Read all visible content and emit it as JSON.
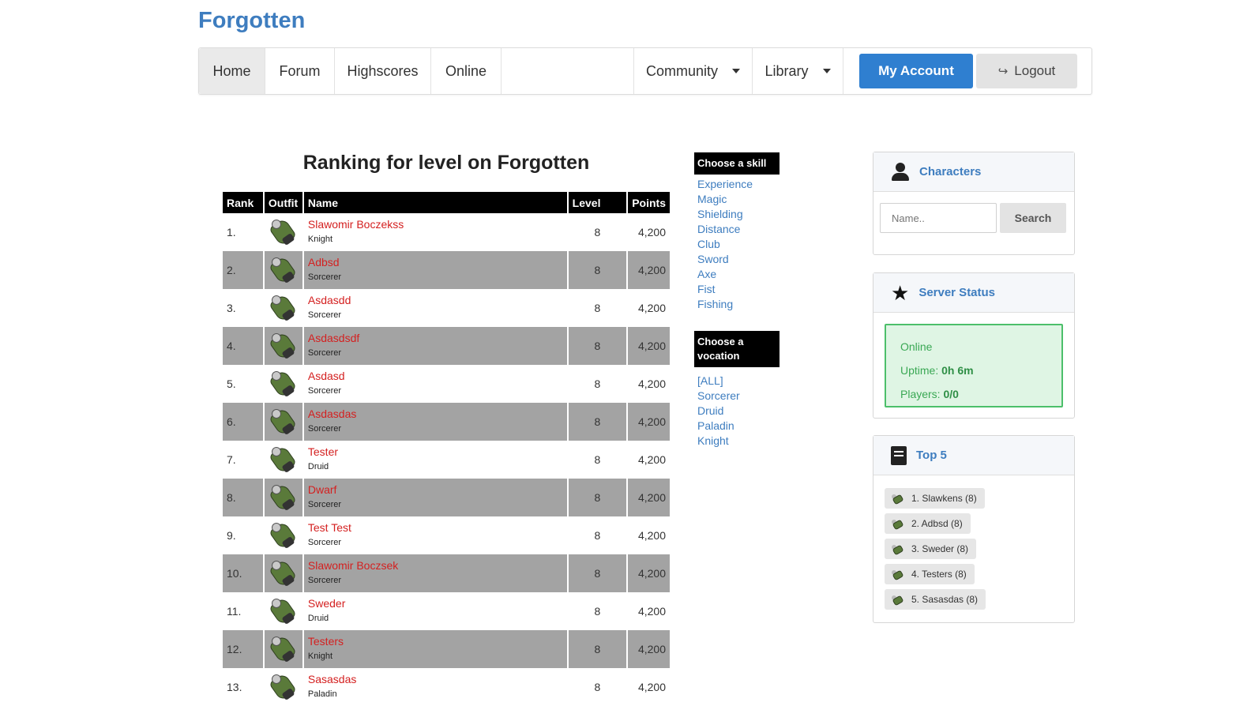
{
  "brand": "Forgotten",
  "nav": {
    "home": "Home",
    "forum": "Forum",
    "highscores": "Highscores",
    "online": "Online",
    "community": "Community",
    "library": "Library",
    "my_account": "My Account",
    "logout": "Logout"
  },
  "ranking": {
    "title": "Ranking for level on Forgotten",
    "headers": {
      "rank": "Rank",
      "outfit": "Outfit",
      "name": "Name",
      "level": "Level",
      "points": "Points"
    },
    "rows": [
      {
        "rank": "1.",
        "name": "Slawomir Boczekss",
        "vocation": "Knight",
        "level": "8",
        "points": "4,200"
      },
      {
        "rank": "2.",
        "name": "Adbsd",
        "vocation": "Sorcerer",
        "level": "8",
        "points": "4,200"
      },
      {
        "rank": "3.",
        "name": "Asdasdd",
        "vocation": "Sorcerer",
        "level": "8",
        "points": "4,200"
      },
      {
        "rank": "4.",
        "name": "Asdasdsdf",
        "vocation": "Sorcerer",
        "level": "8",
        "points": "4,200"
      },
      {
        "rank": "5.",
        "name": "Asdasd",
        "vocation": "Sorcerer",
        "level": "8",
        "points": "4,200"
      },
      {
        "rank": "6.",
        "name": "Asdasdas",
        "vocation": "Sorcerer",
        "level": "8",
        "points": "4,200"
      },
      {
        "rank": "7.",
        "name": "Tester",
        "vocation": "Druid",
        "level": "8",
        "points": "4,200"
      },
      {
        "rank": "8.",
        "name": "Dwarf",
        "vocation": "Sorcerer",
        "level": "8",
        "points": "4,200"
      },
      {
        "rank": "9.",
        "name": "Test Test",
        "vocation": "Sorcerer",
        "level": "8",
        "points": "4,200"
      },
      {
        "rank": "10.",
        "name": "Slawomir Boczsek",
        "vocation": "Sorcerer",
        "level": "8",
        "points": "4,200"
      },
      {
        "rank": "11.",
        "name": "Sweder",
        "vocation": "Druid",
        "level": "8",
        "points": "4,200"
      },
      {
        "rank": "12.",
        "name": "Testers",
        "vocation": "Knight",
        "level": "8",
        "points": "4,200"
      },
      {
        "rank": "13.",
        "name": "Sasasdas",
        "vocation": "Paladin",
        "level": "8",
        "points": "4,200"
      }
    ]
  },
  "skills": {
    "header": "Choose a skill",
    "items": [
      "Experience",
      "Magic",
      "Shielding",
      "Distance",
      "Club",
      "Sword",
      "Axe",
      "Fist",
      "Fishing"
    ]
  },
  "vocations": {
    "header": "Choose a vocation",
    "items": [
      "[ALL]",
      "Sorcerer",
      "Druid",
      "Paladin",
      "Knight"
    ]
  },
  "characters": {
    "title": "Characters",
    "placeholder": "Name..",
    "search": "Search"
  },
  "server_status": {
    "title": "Server Status",
    "online": "Online",
    "uptime_label": "Uptime:",
    "uptime_value": "0h 6m",
    "players_label": "Players:",
    "players_value": "0/0"
  },
  "top5": {
    "title": "Top 5",
    "items": [
      "1. Slawkens (8)",
      "2. Adbsd (8)",
      "3. Sweder (8)",
      "4. Testers (8)",
      "5. Sasasdas (8)"
    ]
  },
  "colors": {
    "brand": "#3e7dbf",
    "player_name": "#d42020",
    "primary_button": "#2f7fd0",
    "status_green": "#4cbf6a"
  }
}
